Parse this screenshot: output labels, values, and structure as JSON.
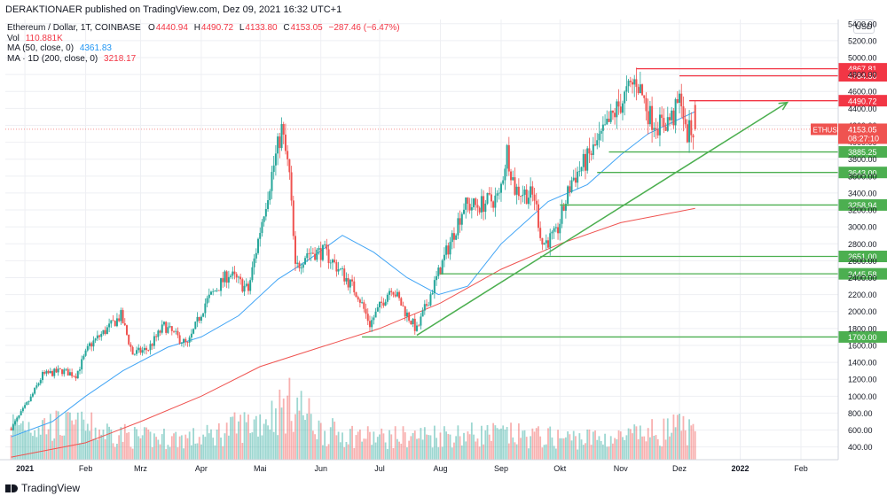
{
  "header": {
    "published": "DERAKTIONAER published on TradingView.com, Dez 09, 2021 16:32 UTC+1"
  },
  "legend": {
    "symbol": "Ethereum / Dollar, 1T, COINBASE",
    "open_label": "O",
    "open": "4440.94",
    "high_label": "H",
    "high": "4490.72",
    "low_label": "L",
    "low": "4133.80",
    "close_label": "C",
    "close": "4153.05",
    "change": "−287.46 (−6.47%)",
    "vol_label": "Vol",
    "vol": "110.881K",
    "ma50_label": "MA (50, close, 0)",
    "ma50": "4361.83",
    "ma200_label": "MA · 1D (200, close, 0)",
    "ma200": "3218.17"
  },
  "currency_button": "USD",
  "footer": {
    "logo_text": "TradingView"
  },
  "colors": {
    "up": "#26a69a",
    "down": "#ef5350",
    "ma50": "#42a5f5",
    "ma200": "#ef5350",
    "support": "#4caf50",
    "resistance": "#f23645",
    "trend": "#4caf50",
    "grid": "#eeeff3"
  },
  "chart_data": {
    "type": "candlestick",
    "title": "Ethereum / Dollar, 1T, COINBASE",
    "x_axis": {
      "tick_labels": [
        "2021",
        "Feb",
        "Mrz",
        "Apr",
        "Mai",
        "Jun",
        "Jul",
        "Aug",
        "Sep",
        "Okt",
        "Nov",
        "Dez",
        "2022",
        "Feb"
      ],
      "tick_dates": [
        "2021-01-01",
        "2021-02-01",
        "2021-03-01",
        "2021-04-01",
        "2021-05-01",
        "2021-06-01",
        "2021-07-01",
        "2021-08-01",
        "2021-09-01",
        "2021-10-01",
        "2021-11-01",
        "2021-12-01",
        "2022-01-01",
        "2022-02-01"
      ],
      "range": [
        "2020-12-22",
        "2022-02-20"
      ]
    },
    "y_axis": {
      "scale": "linear",
      "range": [
        250,
        5450
      ],
      "tick_labels": [
        "400.00",
        "600.00",
        "800.00",
        "1000.00",
        "1200.00",
        "1400.00",
        "1600.00",
        "1800.00",
        "2000.00",
        "2200.00",
        "2400.00",
        "2600.00",
        "2800.00",
        "3000.00",
        "3200.00",
        "3400.00",
        "3600.00",
        "3800.00",
        "4000.00",
        "4200.00",
        "4400.00",
        "4600.00",
        "4800.00",
        "5000.00",
        "5200.00",
        "5400.00"
      ],
      "tick_values": [
        400,
        600,
        800,
        1000,
        1200,
        1400,
        1600,
        1800,
        2000,
        2200,
        2400,
        2600,
        2800,
        3000,
        3200,
        3400,
        3600,
        3800,
        4000,
        4200,
        4400,
        4600,
        4800,
        5000,
        5200,
        5400
      ]
    },
    "price_path": [
      {
        "date": "2020-12-25",
        "price": 620
      },
      {
        "date": "2021-01-04",
        "price": 980
      },
      {
        "date": "2021-01-10",
        "price": 1250
      },
      {
        "date": "2021-01-20",
        "price": 1300
      },
      {
        "date": "2021-01-27",
        "price": 1250
      },
      {
        "date": "2021-02-03",
        "price": 1600
      },
      {
        "date": "2021-02-10",
        "price": 1750
      },
      {
        "date": "2021-02-19",
        "price": 1950
      },
      {
        "date": "2021-02-25",
        "price": 1500
      },
      {
        "date": "2021-03-05",
        "price": 1560
      },
      {
        "date": "2021-03-13",
        "price": 1830
      },
      {
        "date": "2021-03-25",
        "price": 1600
      },
      {
        "date": "2021-04-03",
        "price": 2100
      },
      {
        "date": "2021-04-15",
        "price": 2450
      },
      {
        "date": "2021-04-25",
        "price": 2250
      },
      {
        "date": "2021-05-03",
        "price": 3200
      },
      {
        "date": "2021-05-12",
        "price": 4150
      },
      {
        "date": "2021-05-16",
        "price": 3600
      },
      {
        "date": "2021-05-19",
        "price": 2500
      },
      {
        "date": "2021-05-25",
        "price": 2700
      },
      {
        "date": "2021-06-03",
        "price": 2700
      },
      {
        "date": "2021-06-12",
        "price": 2450
      },
      {
        "date": "2021-06-20",
        "price": 2200
      },
      {
        "date": "2021-06-26",
        "price": 1850
      },
      {
        "date": "2021-07-07",
        "price": 2300
      },
      {
        "date": "2021-07-14",
        "price": 2000
      },
      {
        "date": "2021-07-20",
        "price": 1780
      },
      {
        "date": "2021-07-31",
        "price": 2450
      },
      {
        "date": "2021-08-13",
        "price": 3250
      },
      {
        "date": "2021-08-20",
        "price": 3250
      },
      {
        "date": "2021-08-31",
        "price": 3350
      },
      {
        "date": "2021-09-04",
        "price": 3900
      },
      {
        "date": "2021-09-08",
        "price": 3450
      },
      {
        "date": "2021-09-18",
        "price": 3350
      },
      {
        "date": "2021-09-22",
        "price": 2800
      },
      {
        "date": "2021-09-29",
        "price": 2900
      },
      {
        "date": "2021-10-07",
        "price": 3550
      },
      {
        "date": "2021-10-15",
        "price": 3800
      },
      {
        "date": "2021-10-22",
        "price": 4050
      },
      {
        "date": "2021-10-29",
        "price": 4350
      },
      {
        "date": "2021-11-09",
        "price": 4750
      },
      {
        "date": "2021-11-16",
        "price": 4300
      },
      {
        "date": "2021-11-21",
        "price": 4200
      },
      {
        "date": "2021-11-28",
        "price": 4300
      },
      {
        "date": "2021-12-02",
        "price": 4550
      },
      {
        "date": "2021-12-04",
        "price": 4100
      },
      {
        "date": "2021-12-09",
        "price": 4153
      }
    ],
    "last_candle": {
      "date": "2021-12-09",
      "open": 4440.94,
      "high": 4490.72,
      "low": 4133.8,
      "close": 4153.05
    },
    "series": [
      {
        "name": "MA (50, close, 0)",
        "color": "#42a5f5",
        "points": [
          {
            "date": "2020-12-25",
            "value": 520
          },
          {
            "date": "2021-01-15",
            "value": 700
          },
          {
            "date": "2021-02-01",
            "value": 1000
          },
          {
            "date": "2021-02-20",
            "value": 1300
          },
          {
            "date": "2021-03-15",
            "value": 1580
          },
          {
            "date": "2021-04-01",
            "value": 1700
          },
          {
            "date": "2021-04-20",
            "value": 1950
          },
          {
            "date": "2021-05-10",
            "value": 2380
          },
          {
            "date": "2021-05-25",
            "value": 2600
          },
          {
            "date": "2021-06-12",
            "value": 2900
          },
          {
            "date": "2021-06-28",
            "value": 2700
          },
          {
            "date": "2021-07-15",
            "value": 2400
          },
          {
            "date": "2021-07-31",
            "value": 2200
          },
          {
            "date": "2021-08-15",
            "value": 2300
          },
          {
            "date": "2021-09-01",
            "value": 2800
          },
          {
            "date": "2021-09-25",
            "value": 3300
          },
          {
            "date": "2021-10-15",
            "value": 3500
          },
          {
            "date": "2021-11-01",
            "value": 3850
          },
          {
            "date": "2021-11-15",
            "value": 4100
          },
          {
            "date": "2021-12-09",
            "value": 4362
          }
        ]
      },
      {
        "name": "MA · 1D (200, close, 0)",
        "color": "#ef5350",
        "points": [
          {
            "date": "2020-12-25",
            "value": 280
          },
          {
            "date": "2021-02-01",
            "value": 450
          },
          {
            "date": "2021-03-01",
            "value": 700
          },
          {
            "date": "2021-04-01",
            "value": 1000
          },
          {
            "date": "2021-05-01",
            "value": 1350
          },
          {
            "date": "2021-06-01",
            "value": 1580
          },
          {
            "date": "2021-07-01",
            "value": 1800
          },
          {
            "date": "2021-08-01",
            "value": 2100
          },
          {
            "date": "2021-09-01",
            "value": 2500
          },
          {
            "date": "2021-10-01",
            "value": 2800
          },
          {
            "date": "2021-11-01",
            "value": 3050
          },
          {
            "date": "2021-12-09",
            "value": 3218
          }
        ]
      }
    ],
    "volume_path": [
      {
        "date": "2021-01-01",
        "value": 0.5
      },
      {
        "date": "2021-02-01",
        "value": 0.45
      },
      {
        "date": "2021-03-01",
        "value": 0.3
      },
      {
        "date": "2021-04-01",
        "value": 0.3
      },
      {
        "date": "2021-05-01",
        "value": 0.55
      },
      {
        "date": "2021-05-19",
        "value": 0.8
      },
      {
        "date": "2021-06-01",
        "value": 0.4
      },
      {
        "date": "2021-07-01",
        "value": 0.3
      },
      {
        "date": "2021-08-01",
        "value": 0.35
      },
      {
        "date": "2021-09-01",
        "value": 0.35
      },
      {
        "date": "2021-10-01",
        "value": 0.3
      },
      {
        "date": "2021-11-01",
        "value": 0.3
      },
      {
        "date": "2021-12-04",
        "value": 0.45
      },
      {
        "date": "2021-12-09",
        "value": 0.3
      }
    ],
    "support_levels": [
      {
        "value": 3885.25,
        "label": "3885.25",
        "from_date": "2021-10-26"
      },
      {
        "value": 3643.0,
        "label": "3643.00",
        "from_date": "2021-10-20"
      },
      {
        "value": 3258.94,
        "label": "3258.94",
        "from_date": "2021-10-01"
      },
      {
        "value": 2651.0,
        "label": "2651.00",
        "from_date": "2021-09-21"
      },
      {
        "value": 2445.58,
        "label": "2445.58",
        "from_date": "2021-08-01"
      },
      {
        "value": 1700.0,
        "label": "1700.00",
        "from_date": "2021-06-22"
      }
    ],
    "resistance_levels": [
      {
        "value": 4867.81,
        "label": "4867.81",
        "from_date": "2021-11-09"
      },
      {
        "value": 4784.5,
        "label": "4784.50",
        "from_date": "2021-12-01"
      },
      {
        "value": 4490.72,
        "label": "4490.72",
        "from_date": "2021-12-06"
      }
    ],
    "trendline": {
      "from": {
        "date": "2021-07-20",
        "value": 1720
      },
      "to": {
        "date": "2022-01-25",
        "value": 4470
      }
    },
    "current_price": {
      "symbol": "ETHUSD",
      "value": "4153.05",
      "countdown": "08:27:10"
    },
    "grid": true,
    "legend": "top-left"
  }
}
